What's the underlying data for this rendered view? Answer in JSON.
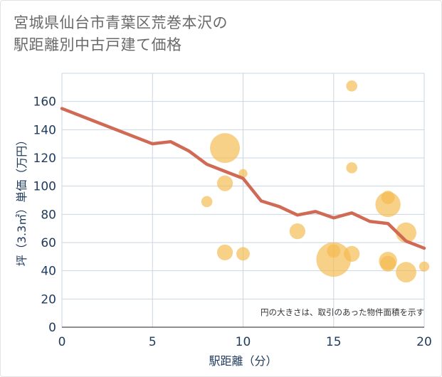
{
  "title_line1": "宮城県仙台市青葉区荒巻本沢の",
  "title_line2": "駅距離別中古戸建て価格",
  "chart_data": {
    "type": "scatter",
    "title": "宮城県仙台市青葉区荒巻本沢の駅距離別中古戸建て価格",
    "xlabel": "駅距離（分）",
    "ylabel": "坪（3.3㎡）単価（万円）",
    "xlim": [
      0,
      20
    ],
    "ylim": [
      0,
      180
    ],
    "x_ticks": [
      0,
      5,
      10,
      15,
      20
    ],
    "y_ticks": [
      0,
      20,
      40,
      60,
      80,
      100,
      120,
      140,
      160
    ],
    "grid": true,
    "annotation": "円の大きさは、取引のあった物件面積を示す",
    "colors": {
      "bubble": "#f5b94a",
      "line": "#d06a55",
      "grid": "#c9d6e3",
      "text": "#1e3a5c"
    },
    "bubbles": [
      {
        "x": 8,
        "y": 89,
        "size": 1
      },
      {
        "x": 9,
        "y": 127,
        "size": 5
      },
      {
        "x": 9,
        "y": 102,
        "size": 2
      },
      {
        "x": 9,
        "y": 53,
        "size": 2
      },
      {
        "x": 10,
        "y": 109,
        "size": 0.5
      },
      {
        "x": 10,
        "y": 52,
        "size": 1.5
      },
      {
        "x": 13,
        "y": 68,
        "size": 2
      },
      {
        "x": 15,
        "y": 54,
        "size": 1.5
      },
      {
        "x": 15,
        "y": 48,
        "size": 6
      },
      {
        "x": 16,
        "y": 171,
        "size": 1
      },
      {
        "x": 16,
        "y": 113,
        "size": 1
      },
      {
        "x": 16,
        "y": 52,
        "size": 2
      },
      {
        "x": 18,
        "y": 92,
        "size": 1.5
      },
      {
        "x": 18,
        "y": 87,
        "size": 4
      },
      {
        "x": 18,
        "y": 47,
        "size": 2.5
      },
      {
        "x": 18,
        "y": 45,
        "size": 2
      },
      {
        "x": 19,
        "y": 67,
        "size": 3
      },
      {
        "x": 19,
        "y": 39,
        "size": 3
      },
      {
        "x": 20,
        "y": 43,
        "size": 0.8
      }
    ],
    "trend_line": {
      "x": [
        0,
        5,
        6,
        7,
        8,
        9,
        10,
        11,
        12,
        13,
        14,
        15,
        16,
        17,
        18,
        19,
        20
      ],
      "y": [
        155,
        130,
        131.5,
        125,
        115.5,
        110.5,
        105.5,
        89.5,
        85.5,
        79.5,
        82,
        77.5,
        81,
        75,
        73.5,
        61,
        56
      ]
    }
  }
}
